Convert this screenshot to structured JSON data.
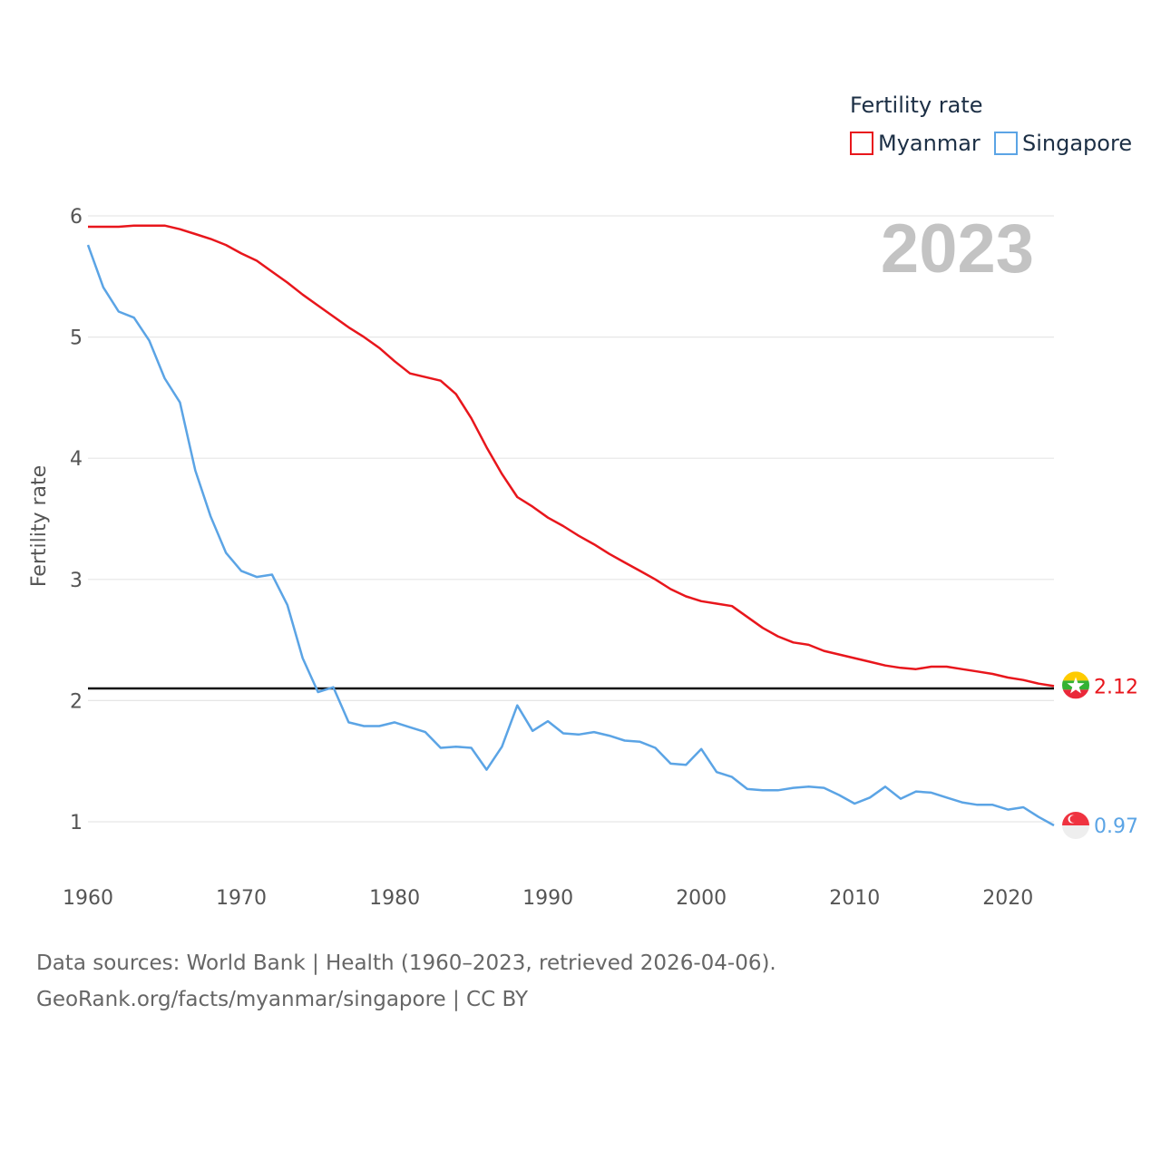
{
  "chart_data": {
    "type": "line",
    "title": "Fertility rate",
    "ylabel": "Fertility rate",
    "xlabel": "",
    "year_label": "2023",
    "xlim": [
      1960,
      2023
    ],
    "ylim": [
      0.5,
      6.1
    ],
    "xticks": [
      1960,
      1970,
      1980,
      1990,
      2000,
      2010,
      2020
    ],
    "yticks": [
      1,
      2,
      3,
      4,
      5,
      6
    ],
    "reference_line": 2.1,
    "x": [
      1960,
      1961,
      1962,
      1963,
      1964,
      1965,
      1966,
      1967,
      1968,
      1969,
      1970,
      1971,
      1972,
      1973,
      1974,
      1975,
      1976,
      1977,
      1978,
      1979,
      1980,
      1981,
      1982,
      1983,
      1984,
      1985,
      1986,
      1987,
      1988,
      1989,
      1990,
      1991,
      1992,
      1993,
      1994,
      1995,
      1996,
      1997,
      1998,
      1999,
      2000,
      2001,
      2002,
      2003,
      2004,
      2005,
      2006,
      2007,
      2008,
      2009,
      2010,
      2011,
      2012,
      2013,
      2014,
      2015,
      2016,
      2017,
      2018,
      2019,
      2020,
      2021,
      2022,
      2023
    ],
    "series": [
      {
        "name": "Myanmar",
        "color": "#e8161c",
        "end_label": "2.12",
        "flag": "myanmar-flag-icon",
        "values": [
          5.91,
          5.91,
          5.91,
          5.92,
          5.92,
          5.92,
          5.89,
          5.85,
          5.81,
          5.76,
          5.69,
          5.63,
          5.54,
          5.45,
          5.35,
          5.26,
          5.17,
          5.08,
          5.0,
          4.91,
          4.8,
          4.7,
          4.67,
          4.64,
          4.53,
          4.33,
          4.09,
          3.87,
          3.68,
          3.6,
          3.51,
          3.44,
          3.36,
          3.29,
          3.21,
          3.14,
          3.07,
          3.0,
          2.92,
          2.86,
          2.82,
          2.8,
          2.78,
          2.69,
          2.6,
          2.53,
          2.48,
          2.46,
          2.41,
          2.38,
          2.35,
          2.32,
          2.29,
          2.27,
          2.26,
          2.28,
          2.28,
          2.26,
          2.24,
          2.22,
          2.19,
          2.17,
          2.14,
          2.12
        ]
      },
      {
        "name": "Singapore",
        "color": "#5ba4e5",
        "end_label": "0.97",
        "flag": "singapore-flag-icon",
        "values": [
          5.76,
          5.41,
          5.21,
          5.16,
          4.97,
          4.66,
          4.46,
          3.9,
          3.52,
          3.22,
          3.07,
          3.02,
          3.04,
          2.79,
          2.35,
          2.07,
          2.11,
          1.82,
          1.79,
          1.79,
          1.82,
          1.78,
          1.74,
          1.61,
          1.62,
          1.61,
          1.43,
          1.62,
          1.96,
          1.75,
          1.83,
          1.73,
          1.72,
          1.74,
          1.71,
          1.67,
          1.66,
          1.61,
          1.48,
          1.47,
          1.6,
          1.41,
          1.37,
          1.27,
          1.26,
          1.26,
          1.28,
          1.29,
          1.28,
          1.22,
          1.15,
          1.2,
          1.29,
          1.19,
          1.25,
          1.24,
          1.2,
          1.16,
          1.14,
          1.14,
          1.1,
          1.12,
          1.04,
          0.97
        ]
      }
    ]
  },
  "source": {
    "line1": "Data sources: World Bank | Health (1960–2023, retrieved 2026-04-06).",
    "line2": "GeoRank.org/facts/myanmar/singapore | CC BY"
  }
}
